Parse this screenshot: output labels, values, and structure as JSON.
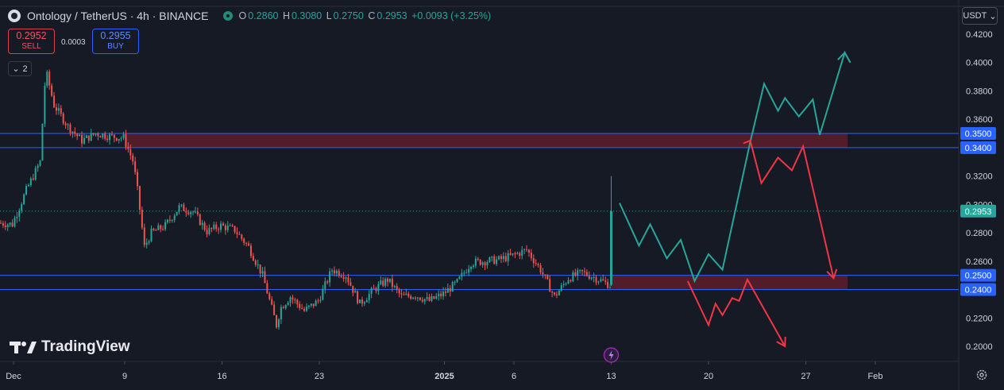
{
  "header": {
    "title": "Ontology / TetherUS · 4h · BINANCE",
    "ohlc": [
      {
        "key": "O",
        "value": "0.2860"
      },
      {
        "key": "H",
        "value": "0.3080"
      },
      {
        "key": "L",
        "value": "0.2750"
      },
      {
        "key": "C",
        "value": "0.2953"
      }
    ],
    "change": "+0.0093 (+3.25%)"
  },
  "trade": {
    "sell_price": "0.2952",
    "sell_label": "SELL",
    "spread": "0.0003",
    "buy_price": "0.2955",
    "buy_label": "BUY"
  },
  "indicators_count": "2",
  "currency": "USDT",
  "watermark": "TradingView",
  "colors": {
    "background": "#161a25",
    "up": "#26a69a",
    "down": "#ef5350",
    "level_line": "#2962ff",
    "zone_fill": "#5c1f2c",
    "bull_path": "#26a69a",
    "bear_path": "#f23645"
  },
  "chart_data": {
    "type": "candlestick",
    "y_ticks": [
      "0.4200",
      "0.4000",
      "0.3800",
      "0.3600",
      "0.3400",
      "0.3200",
      "0.3000",
      "0.2800",
      "0.2600",
      "0.2400",
      "0.2200",
      "0.2000"
    ],
    "x_ticks": [
      "Dec",
      "9",
      "16",
      "23",
      "2025",
      "6",
      "13",
      "20",
      "27",
      "Feb"
    ],
    "ylim": [
      0.19,
      0.425
    ],
    "price_badges": [
      {
        "label": "0.3500",
        "value": 0.35,
        "color": "#2962ff"
      },
      {
        "label": "0.3400",
        "value": 0.34,
        "color": "#2962ff"
      },
      {
        "label": "0.2953",
        "value": 0.2953,
        "color": "#26a69a"
      },
      {
        "label": "0.2500",
        "value": 0.25,
        "color": "#2962ff"
      },
      {
        "label": "0.2400",
        "value": 0.24,
        "color": "#2962ff"
      }
    ],
    "levels": [
      0.35,
      0.34,
      0.25,
      0.24
    ],
    "zones": [
      {
        "from": "Dec 9",
        "to": "Jan 30",
        "low": 0.34,
        "high": 0.35
      },
      {
        "from": "Jan 13",
        "to": "Jan 30",
        "low": 0.24,
        "high": 0.25
      }
    ],
    "price_anchors": [
      [
        "Nov 30",
        0.287
      ],
      [
        "Dec 1",
        0.286
      ],
      [
        "Dec 2",
        0.31
      ],
      [
        "Dec 3",
        0.33
      ],
      [
        "Dec 3.4",
        0.395
      ],
      [
        "Dec 4",
        0.37
      ],
      [
        "Dec 5",
        0.355
      ],
      [
        "Dec 6",
        0.345
      ],
      [
        "Dec 7",
        0.35
      ],
      [
        "Dec 8",
        0.348
      ],
      [
        "Dec 9",
        0.347
      ],
      [
        "Dec 9.7",
        0.33
      ],
      [
        "Dec 10",
        0.31
      ],
      [
        "Dec 10.5",
        0.27
      ],
      [
        "Dec 11",
        0.28
      ],
      [
        "Dec 12",
        0.285
      ],
      [
        "Dec 13",
        0.298
      ],
      [
        "Dec 14",
        0.295
      ],
      [
        "Dec 15",
        0.281
      ],
      [
        "Dec 16",
        0.285
      ],
      [
        "Dec 17",
        0.282
      ],
      [
        "Dec 18",
        0.27
      ],
      [
        "Dec 19",
        0.25
      ],
      [
        "Dec 20",
        0.215
      ],
      [
        "Dec 20.3",
        0.227
      ],
      [
        "Dec 21",
        0.235
      ],
      [
        "Dec 22",
        0.225
      ],
      [
        "Dec 23",
        0.232
      ],
      [
        "Dec 24",
        0.254
      ],
      [
        "Dec 25",
        0.25
      ],
      [
        "Dec 26",
        0.23
      ],
      [
        "Dec 27",
        0.24
      ],
      [
        "Dec 28",
        0.247
      ],
      [
        "Dec 29",
        0.235
      ],
      [
        "Dec 30",
        0.236
      ],
      [
        "Dec 31",
        0.232
      ],
      [
        "Jan 1",
        0.237
      ],
      [
        "Jan 2",
        0.245
      ],
      [
        "Jan 3",
        0.259
      ],
      [
        "Jan 4",
        0.26
      ],
      [
        "Jan 5",
        0.261
      ],
      [
        "Jan 6",
        0.264
      ],
      [
        "Jan 7",
        0.268
      ],
      [
        "Jan 8",
        0.254
      ],
      [
        "Jan 9",
        0.235
      ],
      [
        "Jan 10",
        0.248
      ],
      [
        "Jan 11",
        0.252
      ],
      [
        "Jan 12",
        0.248
      ],
      [
        "Jan 13",
        0.243
      ]
    ],
    "spike_candle": {
      "date": "Jan 13",
      "open": 0.2435,
      "high": 0.32,
      "low": 0.2425,
      "close": 0.2953
    },
    "bull_projection": [
      [
        "Jan 13.6",
        0.301
      ],
      [
        "Jan 15",
        0.271
      ],
      [
        "Jan 15.8",
        0.286
      ],
      [
        "Jan 17",
        0.262
      ],
      [
        "Jan 18",
        0.275
      ],
      [
        "Jan 19",
        0.246
      ],
      [
        "Jan 20",
        0.265
      ],
      [
        "Jan 21",
        0.254
      ],
      [
        "Jan 23",
        0.344
      ],
      [
        "Jan 24",
        0.385
      ],
      [
        "Jan 25",
        0.366
      ],
      [
        "Jan 25.5",
        0.375
      ],
      [
        "Jan 26.5",
        0.362
      ],
      [
        "Jan 27.5",
        0.374
      ],
      [
        "Jan 28",
        0.349
      ],
      [
        "Jan 29.8",
        0.407
      ],
      [
        "Jan 30.2",
        0.4
      ]
    ],
    "bear_projection_upper": [
      [
        "Jan 22.5",
        0.343
      ],
      [
        "Jan 23",
        0.345
      ],
      [
        "Jan 23.8",
        0.315
      ],
      [
        "Jan 25",
        0.333
      ],
      [
        "Jan 26",
        0.324
      ],
      [
        "Jan 26.8",
        0.341
      ],
      [
        "Jan 29",
        0.248
      ]
    ],
    "bear_projection_lower": [
      [
        "Jan 18.5",
        0.246
      ],
      [
        "Jan 20",
        0.215
      ],
      [
        "Jan 20.5",
        0.23
      ],
      [
        "Jan 21",
        0.222
      ],
      [
        "Jan 21.7",
        0.234
      ],
      [
        "Jan 22.2",
        0.232
      ],
      [
        "Jan 22.8",
        0.247
      ],
      [
        "Jan 25.5",
        0.2
      ]
    ]
  }
}
